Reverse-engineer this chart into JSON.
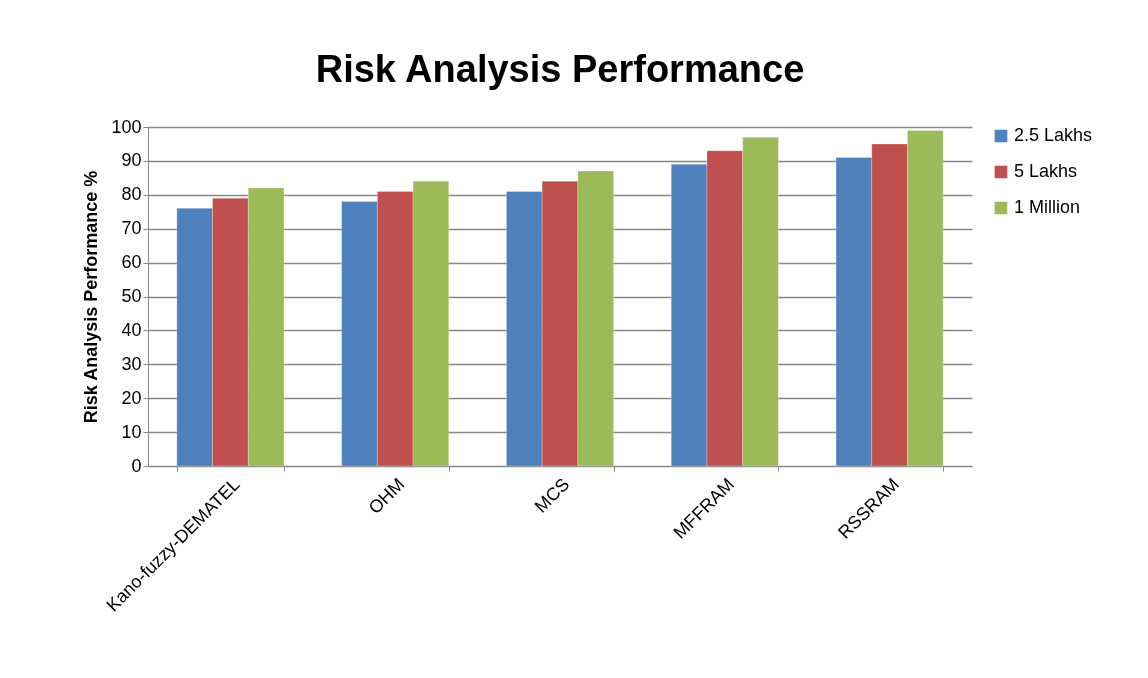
{
  "chart_data": {
    "type": "bar",
    "title": "Risk Analysis Performance",
    "ylabel": "Risk Analysis Performance %",
    "categories": [
      "Kano-fuzzy-DEMATEL",
      "OHM",
      "MCS",
      "MFFRAM",
      "RSSRAM"
    ],
    "series": [
      {
        "name": "2.5 Lakhs",
        "color": "#4f81bd",
        "values": [
          76,
          78,
          81,
          89,
          91
        ]
      },
      {
        "name": "5 Lakhs",
        "color": "#c0504d",
        "values": [
          79,
          81,
          84,
          93,
          95
        ]
      },
      {
        "name": "1 Million",
        "color": "#9bbb59",
        "values": [
          82,
          84,
          87,
          97,
          99
        ]
      }
    ],
    "ylim": [
      0,
      100
    ],
    "yticks": [
      0,
      10,
      20,
      30,
      40,
      50,
      60,
      70,
      80,
      90,
      100
    ],
    "grid": "y",
    "legend": "right"
  }
}
